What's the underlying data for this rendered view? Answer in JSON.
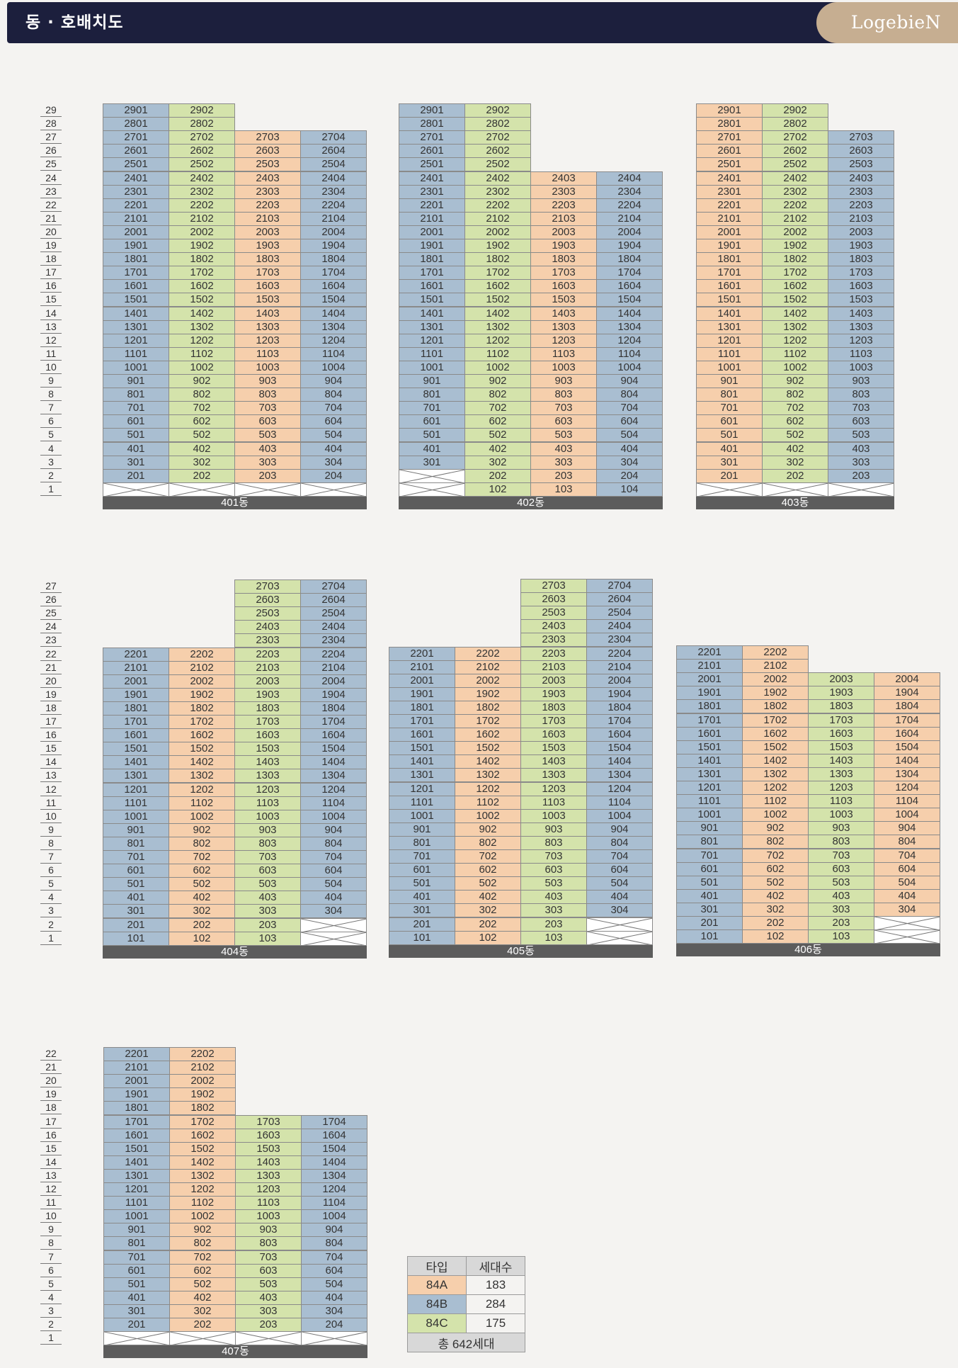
{
  "header": {
    "title": "동 · 호배치도",
    "brand": "LogebieN"
  },
  "colors": {
    "84A": "#f6cfac",
    "84B": "#a9bed1",
    "84C": "#d4e3ab",
    "base": "#5c5c5c",
    "empty": "#ffffff"
  },
  "buildings": [
    {
      "name": "401동",
      "maxFloor": 29,
      "columns": [
        {
          "col": 1,
          "type": "84B",
          "minFloor": 2,
          "maxFloor": 29,
          "blankFloors": [
            1
          ]
        },
        {
          "col": 2,
          "type": "84C",
          "minFloor": 2,
          "maxFloor": 29,
          "blankFloors": [
            1
          ]
        },
        {
          "col": 3,
          "type": "84A",
          "minFloor": 2,
          "maxFloor": 27,
          "blankFloors": [
            1
          ]
        },
        {
          "col": 4,
          "type": "84B",
          "minFloor": 2,
          "maxFloor": 27,
          "blankFloors": [
            1
          ]
        }
      ]
    },
    {
      "name": "402동",
      "maxFloor": 29,
      "columns": [
        {
          "col": 1,
          "type": "84B",
          "minFloor": 3,
          "maxFloor": 29,
          "blankFloors": [
            1,
            2
          ]
        },
        {
          "col": 2,
          "type": "84C",
          "minFloor": 1,
          "maxFloor": 29,
          "blankFloors": []
        },
        {
          "col": 3,
          "type": "84A",
          "minFloor": 1,
          "maxFloor": 24,
          "blankFloors": []
        },
        {
          "col": 4,
          "type": "84B",
          "minFloor": 1,
          "maxFloor": 24,
          "blankFloors": []
        }
      ]
    },
    {
      "name": "403동",
      "maxFloor": 29,
      "columns": [
        {
          "col": 1,
          "type": "84A",
          "minFloor": 2,
          "maxFloor": 29,
          "blankFloors": [
            1
          ]
        },
        {
          "col": 2,
          "type": "84C",
          "minFloor": 2,
          "maxFloor": 29,
          "blankFloors": [
            1
          ]
        },
        {
          "col": 3,
          "type": "84B",
          "minFloor": 2,
          "maxFloor": 27,
          "colNum": 3,
          "blankFloors": [
            1
          ]
        }
      ]
    },
    {
      "name": "404동",
      "maxFloor": 27,
      "columns": [
        {
          "col": 1,
          "type": "84B",
          "minFloor": 1,
          "maxFloor": 22,
          "blankFloors": []
        },
        {
          "col": 2,
          "type": "84A",
          "minFloor": 1,
          "maxFloor": 22,
          "blankFloors": []
        },
        {
          "col": 3,
          "type": "84C",
          "minFloor": 1,
          "maxFloor": 27,
          "blankFloors": []
        },
        {
          "col": 4,
          "type": "84B",
          "minFloor": 3,
          "maxFloor": 27,
          "blankFloors": [
            1,
            2
          ]
        }
      ]
    },
    {
      "name": "405동",
      "maxFloor": 27,
      "columns": [
        {
          "col": 1,
          "type": "84B",
          "minFloor": 1,
          "maxFloor": 22,
          "blankFloors": []
        },
        {
          "col": 2,
          "type": "84A",
          "minFloor": 1,
          "maxFloor": 22,
          "blankFloors": []
        },
        {
          "col": 3,
          "type": "84C",
          "minFloor": 1,
          "maxFloor": 27,
          "blankFloors": []
        },
        {
          "col": 4,
          "type": "84B",
          "minFloor": 3,
          "maxFloor": 27,
          "blankFloors": [
            1,
            2
          ]
        }
      ]
    },
    {
      "name": "406동",
      "maxFloor": 22,
      "columns": [
        {
          "col": 1,
          "type": "84B",
          "minFloor": 1,
          "maxFloor": 22,
          "blankFloors": []
        },
        {
          "col": 2,
          "type": "84A",
          "minFloor": 1,
          "maxFloor": 22,
          "blankFloors": []
        },
        {
          "col": 3,
          "type": "84C",
          "minFloor": 1,
          "maxFloor": 20,
          "blankFloors": []
        },
        {
          "col": 4,
          "type": "84A",
          "minFloor": 3,
          "maxFloor": 20,
          "blankFloors": [
            1,
            2
          ]
        }
      ]
    },
    {
      "name": "407동",
      "maxFloor": 22,
      "columns": [
        {
          "col": 1,
          "type": "84B",
          "minFloor": 2,
          "maxFloor": 22,
          "blankFloors": [
            1
          ]
        },
        {
          "col": 2,
          "type": "84A",
          "minFloor": 2,
          "maxFloor": 22,
          "blankFloors": [
            1
          ]
        },
        {
          "col": 3,
          "type": "84C",
          "minFloor": 2,
          "maxFloor": 17,
          "blankFloors": [
            1
          ]
        },
        {
          "col": 4,
          "type": "84B",
          "minFloor": 2,
          "maxFloor": 17,
          "blankFloors": [
            1
          ]
        }
      ]
    }
  ],
  "legend": {
    "headers": [
      "타입",
      "세대수"
    ],
    "rows": [
      {
        "type": "84A",
        "count": "183"
      },
      {
        "type": "84B",
        "count": "284"
      },
      {
        "type": "84C",
        "count": "175"
      }
    ],
    "total": "총 642세대"
  }
}
